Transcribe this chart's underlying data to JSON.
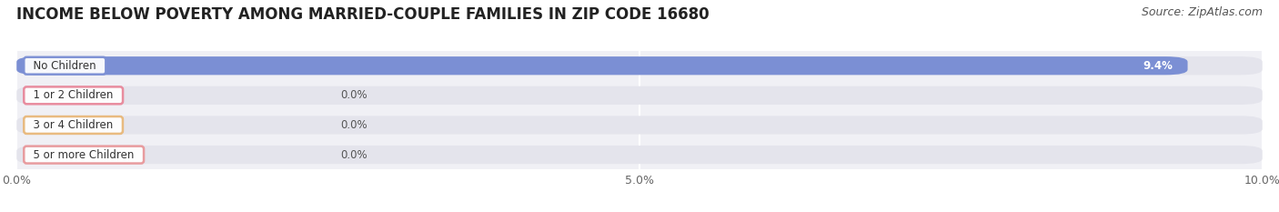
{
  "title": "INCOME BELOW POVERTY AMONG MARRIED-COUPLE FAMILIES IN ZIP CODE 16680",
  "source": "Source: ZipAtlas.com",
  "categories": [
    "No Children",
    "1 or 2 Children",
    "3 or 4 Children",
    "5 or more Children"
  ],
  "values": [
    9.4,
    0.0,
    0.0,
    0.0
  ],
  "bar_colors": [
    "#7b8fd4",
    "#e8879a",
    "#e8b87a",
    "#e8979a"
  ],
  "bar_bg_color": "#e4e4ec",
  "xlim": [
    0,
    10.0
  ],
  "xticks": [
    0.0,
    5.0,
    10.0
  ],
  "xtick_labels": [
    "0.0%",
    "5.0%",
    "10.0%"
  ],
  "title_fontsize": 12,
  "source_fontsize": 9,
  "label_fontsize": 8.5,
  "value_fontsize": 8.5,
  "background_color": "#ffffff",
  "plot_bg_color": "#f0f0f5"
}
